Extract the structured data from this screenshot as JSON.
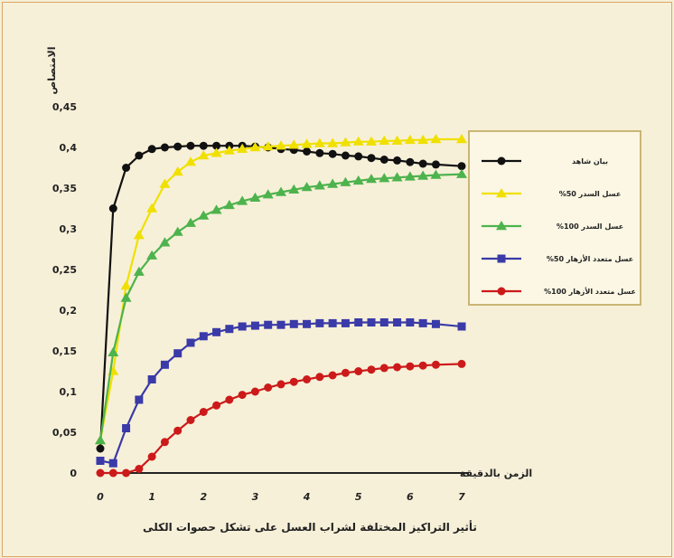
{
  "chart_data": {
    "type": "line",
    "title": "تأثير التراكيز المختلفة لشراب العسل على تشكل حصوات الكلى",
    "xlabel": "الزمن بالدقيقة",
    "ylabel": "الامتصاص",
    "x": [
      0,
      0.25,
      0.5,
      0.75,
      1,
      1.25,
      1.5,
      1.75,
      2,
      2.25,
      2.5,
      2.75,
      3,
      3.25,
      3.5,
      3.75,
      4,
      4.25,
      4.5,
      4.75,
      5,
      5.25,
      5.5,
      5.75,
      6,
      6.25,
      6.5,
      7
    ],
    "xticks": [
      "0",
      "1",
      "2",
      "3",
      "4",
      "5",
      "6",
      "7"
    ],
    "xtick_values": [
      0,
      1,
      2,
      3,
      4,
      5,
      6,
      7
    ],
    "yticks": [
      "0",
      "0,05",
      "0,1",
      "0,15",
      "0,2",
      "0,25",
      "0,3",
      "0,35",
      "0,4",
      "0,45"
    ],
    "ylim": [
      0,
      0.45
    ],
    "legend_position": "right",
    "series": [
      {
        "name": "بيان شاهد",
        "color": "#111111",
        "marker": "circle",
        "values": [
          0.03,
          0.325,
          0.375,
          0.39,
          0.398,
          0.4,
          0.401,
          0.402,
          0.402,
          0.402,
          0.402,
          0.402,
          0.401,
          0.4,
          0.398,
          0.397,
          0.395,
          0.393,
          0.392,
          0.39,
          0.389,
          0.387,
          0.385,
          0.384,
          0.382,
          0.38,
          0.379,
          0.377
        ]
      },
      {
        "name": "عسل السدر 50%",
        "color": "#f0e000",
        "marker": "triangle",
        "values": [
          0.04,
          0.125,
          0.23,
          0.292,
          0.325,
          0.355,
          0.37,
          0.382,
          0.39,
          0.393,
          0.396,
          0.398,
          0.4,
          0.401,
          0.402,
          0.403,
          0.404,
          0.405,
          0.405,
          0.406,
          0.407,
          0.407,
          0.408,
          0.408,
          0.409,
          0.409,
          0.41,
          0.41
        ]
      },
      {
        "name": "عسل السدر 100%",
        "color": "#4db34d",
        "marker": "triangle",
        "values": [
          0.04,
          0.148,
          0.215,
          0.247,
          0.267,
          0.283,
          0.296,
          0.307,
          0.316,
          0.323,
          0.329,
          0.334,
          0.338,
          0.342,
          0.345,
          0.348,
          0.351,
          0.353,
          0.355,
          0.357,
          0.359,
          0.361,
          0.362,
          0.363,
          0.364,
          0.365,
          0.366,
          0.367
        ]
      },
      {
        "name": "عسل متعدد الأزهار 50%",
        "color": "#3a3aa8",
        "marker": "square",
        "values": [
          0.015,
          0.012,
          0.055,
          0.09,
          0.115,
          0.133,
          0.147,
          0.16,
          0.168,
          0.173,
          0.177,
          0.18,
          0.181,
          0.182,
          0.182,
          0.183,
          0.183,
          0.184,
          0.184,
          0.184,
          0.185,
          0.185,
          0.185,
          0.185,
          0.185,
          0.184,
          0.183,
          0.18
        ]
      },
      {
        "name": "عسل متعدد الأزهار 100%",
        "color": "#cc1a1a",
        "marker": "circle",
        "values": [
          0.0,
          0.0,
          0.0,
          0.005,
          0.02,
          0.038,
          0.052,
          0.065,
          0.075,
          0.083,
          0.09,
          0.096,
          0.1,
          0.105,
          0.109,
          0.112,
          0.115,
          0.118,
          0.12,
          0.123,
          0.125,
          0.127,
          0.129,
          0.13,
          0.131,
          0.132,
          0.133,
          0.134
        ]
      }
    ]
  }
}
